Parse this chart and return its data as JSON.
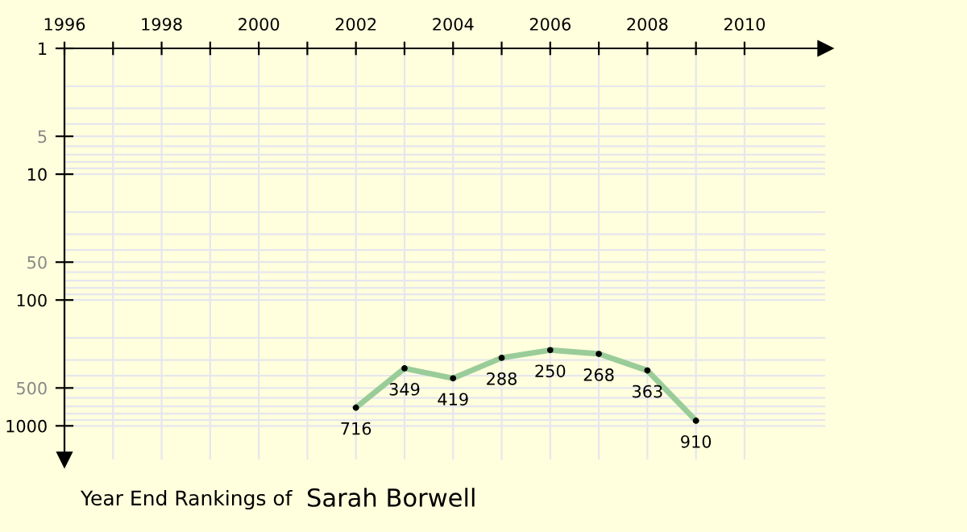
{
  "chart_data": {
    "type": "line",
    "x": [
      2002,
      2003,
      2004,
      2005,
      2006,
      2007,
      2008,
      2009
    ],
    "series": [
      {
        "color": "#99cc99",
        "values": [
          716,
          349,
          419,
          288,
          250,
          268,
          363,
          910
        ]
      }
    ],
    "data_labels": true,
    "marker": "circle",
    "log": "y",
    "grid": true,
    "xlim": [
      1996,
      2011.66
    ],
    "ylim": [
      1850,
      1
    ],
    "xticks": [
      1996,
      {
        "value": 1997,
        "label": null
      },
      1998,
      {
        "value": 1999,
        "label": null
      },
      2000,
      {
        "value": 2001,
        "label": null
      },
      2002,
      {
        "value": 2003,
        "label": null
      },
      2004,
      {
        "value": 2005,
        "label": null
      },
      2006,
      {
        "value": 2007,
        "label": null
      },
      2008,
      {
        "value": 2009,
        "label": null
      },
      2010
    ],
    "yticks": [
      1,
      5,
      10,
      50,
      100,
      500,
      1000
    ],
    "annotations": [
      "Year End Rankings of",
      "Sarah Borwell"
    ]
  }
}
